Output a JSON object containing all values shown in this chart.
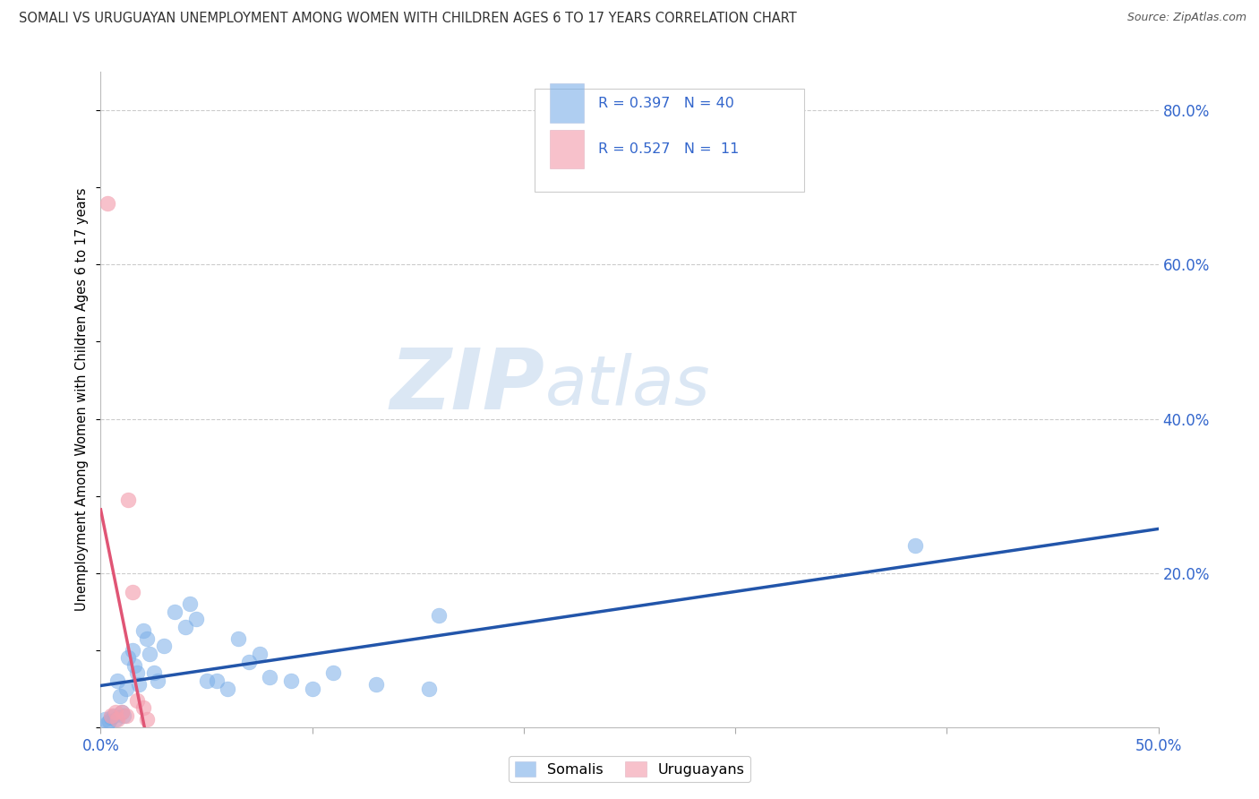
{
  "title": "SOMALI VS URUGUAYAN UNEMPLOYMENT AMONG WOMEN WITH CHILDREN AGES 6 TO 17 YEARS CORRELATION CHART",
  "source": "Source: ZipAtlas.com",
  "ylabel": "Unemployment Among Women with Children Ages 6 to 17 years",
  "xlim": [
    0.0,
    0.5
  ],
  "ylim": [
    0.0,
    0.85
  ],
  "xticks": [
    0.0,
    0.1,
    0.2,
    0.3,
    0.4,
    0.5
  ],
  "xtick_labels": [
    "0.0%",
    "",
    "",
    "",
    "",
    "50.0%"
  ],
  "yticks_right": [
    0.2,
    0.4,
    0.6,
    0.8
  ],
  "ytick_labels_right": [
    "20.0%",
    "40.0%",
    "60.0%",
    "80.0%"
  ],
  "somali_color": "#7aaee8",
  "uruguayan_color": "#f4a0b0",
  "trendline_somali_color": "#2255aa",
  "trendline_uruguayan_color": "#e05575",
  "watermark_zip": "ZIP",
  "watermark_atlas": "atlas",
  "legend_text_color": "#3366cc",
  "somali_x": [
    0.002,
    0.003,
    0.004,
    0.005,
    0.006,
    0.007,
    0.008,
    0.009,
    0.01,
    0.011,
    0.012,
    0.013,
    0.015,
    0.016,
    0.017,
    0.018,
    0.02,
    0.022,
    0.023,
    0.025,
    0.027,
    0.03,
    0.035,
    0.04,
    0.042,
    0.045,
    0.05,
    0.055,
    0.06,
    0.065,
    0.07,
    0.075,
    0.08,
    0.09,
    0.1,
    0.11,
    0.13,
    0.155,
    0.16,
    0.385
  ],
  "somali_y": [
    0.01,
    0.005,
    0.008,
    0.012,
    0.015,
    0.01,
    0.06,
    0.04,
    0.02,
    0.015,
    0.05,
    0.09,
    0.1,
    0.08,
    0.07,
    0.055,
    0.125,
    0.115,
    0.095,
    0.07,
    0.06,
    0.105,
    0.15,
    0.13,
    0.16,
    0.14,
    0.06,
    0.06,
    0.05,
    0.115,
    0.085,
    0.095,
    0.065,
    0.06,
    0.05,
    0.07,
    0.055,
    0.05,
    0.145,
    0.235
  ],
  "uruguayan_x": [
    0.003,
    0.005,
    0.007,
    0.008,
    0.01,
    0.012,
    0.013,
    0.015,
    0.017,
    0.02,
    0.022
  ],
  "uruguayan_y": [
    0.68,
    0.015,
    0.02,
    0.01,
    0.02,
    0.015,
    0.295,
    0.175,
    0.035,
    0.025,
    0.01
  ],
  "uruguayan_trendline_xmin": 0.0,
  "uruguayan_trendline_xmax": 0.035,
  "somali_trendline_xmin": 0.0,
  "somali_trendline_xmax": 0.5
}
